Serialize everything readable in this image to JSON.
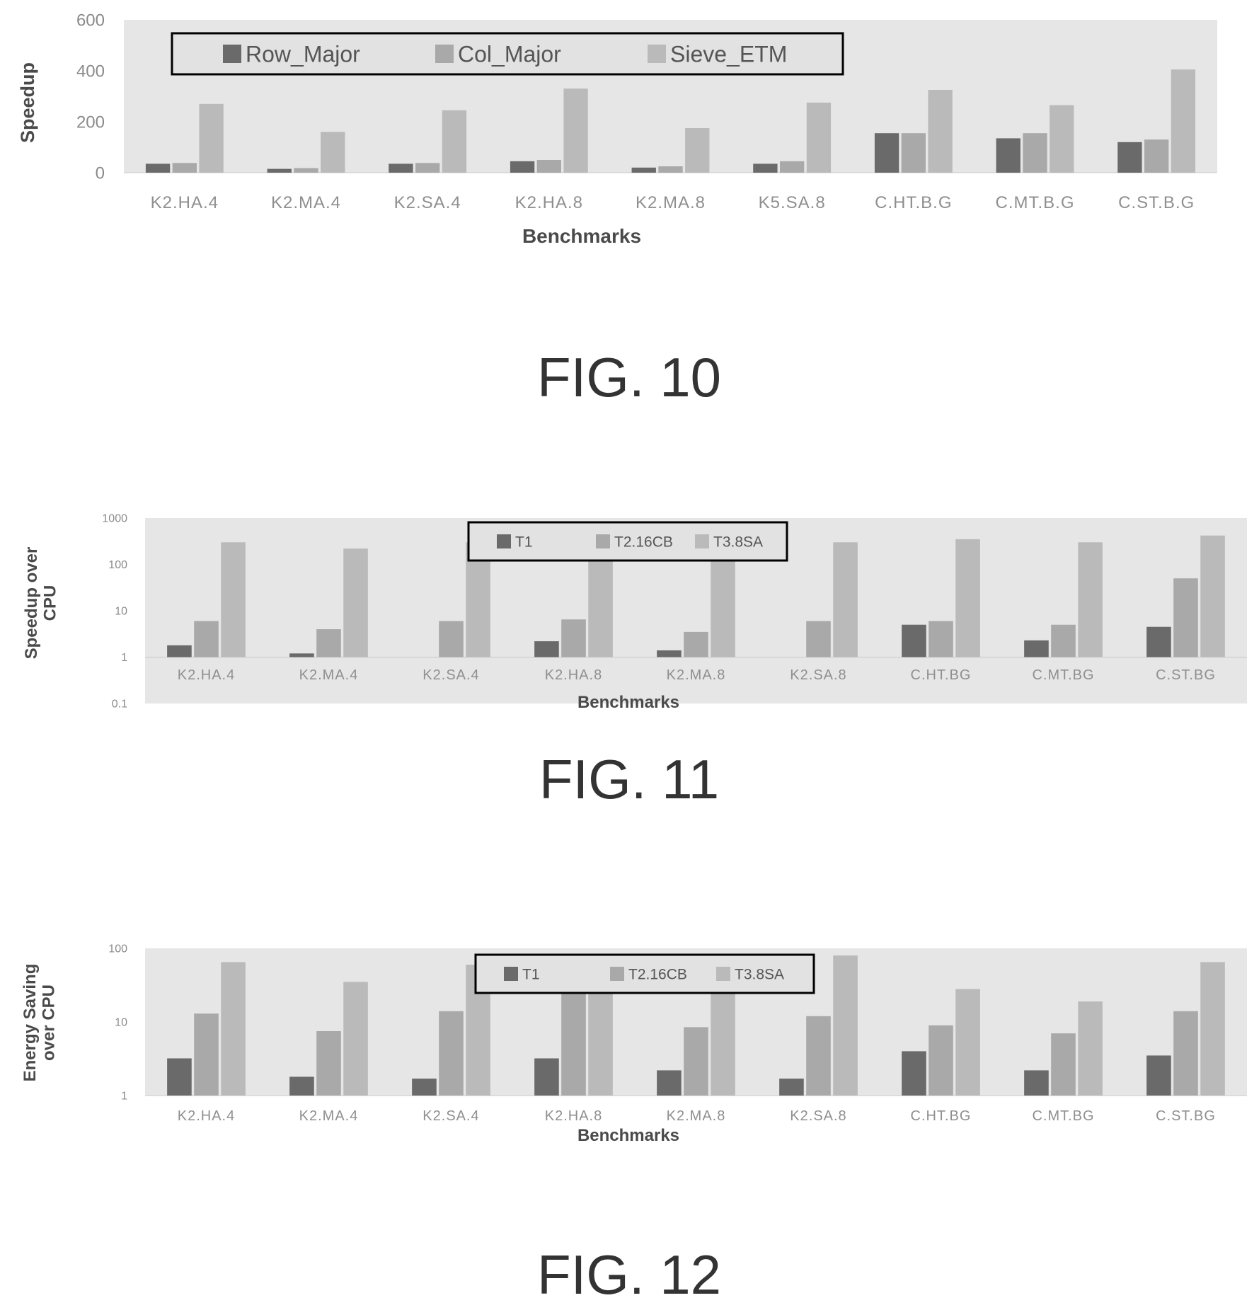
{
  "figures": [
    {
      "label": "FIG. 10"
    },
    {
      "label": "FIG. 11"
    },
    {
      "label": "FIG. 12"
    }
  ],
  "colors": {
    "series1": "#6a6a6a",
    "series2": "#a9a9a9",
    "series3": "#bababa",
    "plot_bg": "#e6e6e6"
  },
  "chart_data": [
    {
      "type": "bar",
      "figure": "FIG. 10",
      "xlabel": "Benchmarks",
      "ylabel": "Speedup",
      "ylim": [
        0,
        600
      ],
      "yticks": [
        0,
        200,
        400,
        600
      ],
      "scale": "linear",
      "legend_position": "top-left",
      "categories": [
        "K2.HA.4",
        "K2.MA.4",
        "K2.SA.4",
        "K2.HA.8",
        "K2.MA.8",
        "K5.SA.8",
        "C.HT.B.G",
        "C.MT.B.G",
        "C.ST.B.G"
      ],
      "series": [
        {
          "name": "Row_Major",
          "values": [
            35,
            15,
            35,
            45,
            20,
            35,
            155,
            135,
            120
          ]
        },
        {
          "name": "Col_Major",
          "values": [
            38,
            18,
            38,
            50,
            25,
            45,
            155,
            155,
            130
          ]
        },
        {
          "name": "Sieve_ETM",
          "values": [
            270,
            160,
            245,
            330,
            175,
            275,
            325,
            265,
            405
          ]
        }
      ]
    },
    {
      "type": "bar",
      "figure": "FIG. 11",
      "xlabel": "Benchmarks",
      "ylabel": "Speedup over CPU",
      "ylim": [
        0.1,
        1000
      ],
      "yticks": [
        0.1,
        1,
        10,
        100,
        1000
      ],
      "scale": "log",
      "legend_position": "top-center",
      "categories": [
        "K2.HA.4",
        "K2.MA.4",
        "K2.SA.4",
        "K2.HA.8",
        "K2.MA.8",
        "K2.SA.8",
        "C.HT.BG",
        "C.MT.BG",
        "C.ST.BG"
      ],
      "series": [
        {
          "name": "T1",
          "values": [
            1.8,
            1.2,
            1,
            2.2,
            1.4,
            1,
            5,
            2.3,
            4.5
          ]
        },
        {
          "name": "T2.16CB",
          "values": [
            6,
            4,
            6,
            6.5,
            3.5,
            6,
            6,
            5,
            50
          ]
        },
        {
          "name": "T3.8SA",
          "values": [
            300,
            220,
            300,
            350,
            250,
            300,
            350,
            300,
            420
          ]
        }
      ]
    },
    {
      "type": "bar",
      "figure": "FIG. 12",
      "xlabel": "Benchmarks",
      "ylabel": "Energy Saving over CPU",
      "ylim": [
        1,
        100
      ],
      "yticks": [
        1,
        10,
        100
      ],
      "scale": "log",
      "legend_position": "top-center",
      "categories": [
        "K2.HA.4",
        "K2.MA.4",
        "K2.SA.4",
        "K2.HA.8",
        "K2.MA.8",
        "K2.SA.8",
        "C.HT.BG",
        "C.MT.BG",
        "C.ST.BG"
      ],
      "series": [
        {
          "name": "T1",
          "values": [
            3.2,
            1.8,
            1.7,
            3.2,
            2.2,
            1.7,
            4,
            2.2,
            3.5
          ]
        },
        {
          "name": "T2.16CB",
          "values": [
            13,
            7.5,
            14,
            35,
            8.5,
            12,
            9,
            7,
            14
          ]
        },
        {
          "name": "T3.8SA",
          "values": [
            65,
            35,
            60,
            40,
            45,
            80,
            28,
            19,
            65
          ]
        }
      ]
    }
  ]
}
